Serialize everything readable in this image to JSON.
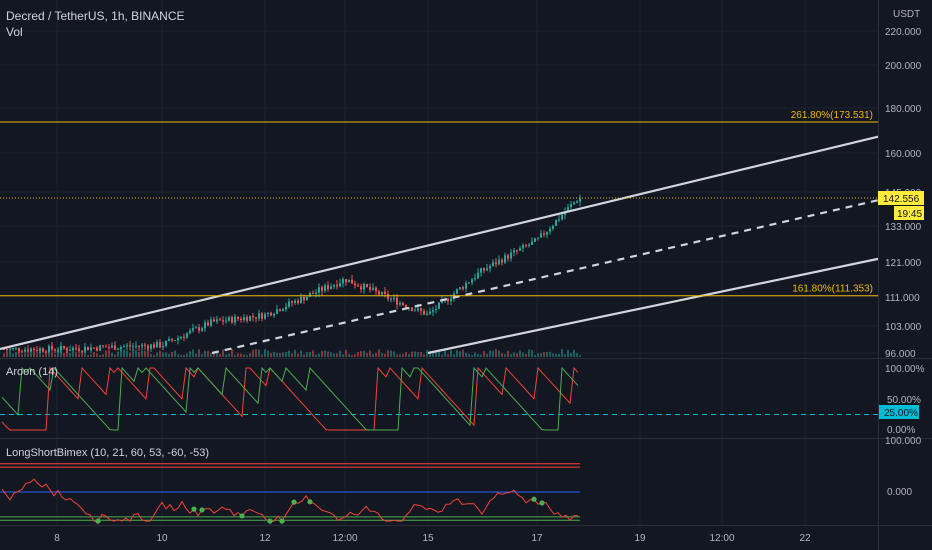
{
  "header": {
    "symbol_line": "Decred / TetherUS, 1h, BINANCE",
    "vol_label": "Vol"
  },
  "currency_label": "USDT",
  "colors": {
    "background": "#131722",
    "up": "#26a69a",
    "down": "#ef5350",
    "fib": "#f0b90b",
    "channel": "#d1d4dc",
    "price_tag": "#ffeb3b",
    "aroon_up": "#4caf50",
    "aroon_down": "#f44336",
    "aroon_level_tag": "#00bcd4"
  },
  "price_axis": {
    "ticks": [
      "220.000",
      "200.000",
      "180.000",
      "160.000",
      "145.000",
      "133.000",
      "121.000",
      "111.000",
      "103.000",
      "96.000"
    ]
  },
  "fib_levels": [
    {
      "label": "261.80%(173.531)",
      "value": 173.531
    },
    {
      "label": "161.80%(111.353)",
      "value": 111.353
    }
  ],
  "current_price": {
    "value": 142.556,
    "label": "142.556",
    "countdown": "19:45"
  },
  "aroon": {
    "title": "Aroon (14)",
    "ticks": [
      "100.00%",
      "50.00%",
      "0.00%"
    ],
    "level_label": "25.00%"
  },
  "bimex": {
    "title": "LongShortBimex (10, 21, 60, 53, -60, -53)",
    "ticks": [
      "100.000",
      "0.000"
    ]
  },
  "time_axis": {
    "ticks": [
      "8",
      "10",
      "12",
      "12:00",
      "15",
      "17",
      "19",
      "12:00",
      "22"
    ]
  },
  "chart_data": {
    "type": "candlestick",
    "title": "Decred / TetherUS, 1h, BINANCE",
    "price_axis_ticks": [
      220,
      200,
      180,
      160,
      145,
      133,
      121,
      111,
      103,
      96
    ],
    "price_range_approx": [
      96,
      225
    ],
    "price_scale": "log",
    "trend_start_price_approx": 96,
    "last_price": 142.556,
    "price_path_approx": [
      {
        "t": "8",
        "price": 97
      },
      {
        "t": "10",
        "price": 98
      },
      {
        "t": "11",
        "price": 104
      },
      {
        "t": "12",
        "price": 106
      },
      {
        "t": "12:00",
        "price": 116
      },
      {
        "t": "15",
        "price": 106
      },
      {
        "t": "16",
        "price": 118
      },
      {
        "t": "17",
        "price": 128
      },
      {
        "t": "17.8",
        "price": 142.556
      }
    ],
    "horizontal_lines": [
      {
        "label": "261.80%(173.531)",
        "value": 173.531
      },
      {
        "label": "161.80%(111.353)",
        "value": 111.353
      }
    ],
    "channel_lines": [
      {
        "name": "upper",
        "style": "solid",
        "from": {
          "t": "start",
          "price": 97
        },
        "to": {
          "t": "end",
          "price": 167
        }
      },
      {
        "name": "middle",
        "style": "dashed",
        "from": {
          "t": "11",
          "price": 96
        },
        "to": {
          "t": "end",
          "price": 142
        }
      },
      {
        "name": "lower",
        "style": "solid",
        "from": {
          "t": "15",
          "price": 96
        },
        "to": {
          "t": "end",
          "price": 122
        }
      }
    ],
    "indicators": [
      {
        "name": "Vol",
        "type": "bar"
      },
      {
        "name": "Aroon (14)",
        "type": "line",
        "range": [
          0,
          100
        ],
        "level": 25
      },
      {
        "name": "LongShortBimex (10, 21, 60, 53, -60, -53)",
        "type": "line",
        "axis_ticks": [
          100,
          0
        ]
      }
    ],
    "x_ticks": [
      "8",
      "10",
      "12",
      "12:00",
      "15",
      "17",
      "19",
      "12:00",
      "22"
    ]
  }
}
